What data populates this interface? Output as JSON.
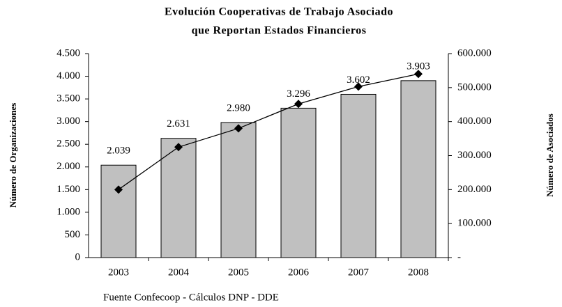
{
  "chart_data": {
    "type": "bar-line",
    "title": [
      "Evolución Cooperativas de Trabajo Asociado",
      "que Reportan Estados Financieros"
    ],
    "y_label": "Número de Organizaciones",
    "y2_label": "Número de Asociados",
    "source": "Fuente Confecoop - Cálculos DNP - DDE",
    "categories": [
      "2003",
      "2004",
      "2005",
      "2006",
      "2007",
      "2008"
    ],
    "series": [
      {
        "type": "bar",
        "color": "#c0c0c0",
        "values": [
          2039,
          2631,
          2980,
          3296,
          3602,
          3903
        ],
        "value_labels": [
          "2.039",
          "2.631",
          "2.980",
          "3.296",
          "3.602",
          "3.903"
        ]
      },
      {
        "type": "line",
        "color": "#000000",
        "axis": "y2",
        "values": [
          200000,
          325000,
          380000,
          452000,
          503000,
          540000
        ]
      }
    ],
    "ylim": [
      0,
      4500
    ],
    "yticks": [
      0,
      500,
      {
        "value": 1000,
        "label": "1.000"
      },
      {
        "value": 1500,
        "label": "1.500"
      },
      {
        "value": 2000,
        "label": "2.000"
      },
      {
        "value": 2500,
        "label": "2.500"
      },
      {
        "value": 3000,
        "label": "3.000"
      },
      {
        "value": 3500,
        "label": "3.500"
      },
      {
        "value": 4000,
        "label": "4.000"
      },
      {
        "value": 4500,
        "label": "4.500"
      }
    ],
    "y2lim": [
      0,
      600000
    ],
    "y2ticks": [
      {
        "value": 0,
        "label": "-"
      },
      {
        "value": 100000,
        "label": "100.000"
      },
      {
        "value": 200000,
        "label": "200.000"
      },
      {
        "value": 300000,
        "label": "300.000"
      },
      {
        "value": 400000,
        "label": "400.000"
      },
      {
        "value": 500000,
        "label": "500.000"
      },
      {
        "value": 600000,
        "label": "600.000"
      }
    ]
  }
}
